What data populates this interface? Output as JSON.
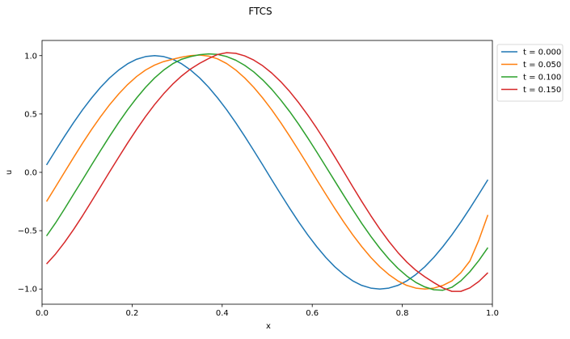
{
  "chart_data": {
    "type": "line",
    "title": "FTCS",
    "xlabel": "x",
    "ylabel": "u",
    "xlim": [
      0.0,
      1.0
    ],
    "ylim": [
      -1.13,
      1.13
    ],
    "grid": false,
    "legend_position": "outside-top-right",
    "x_ticks": [
      "0.0",
      "0.2",
      "0.4",
      "0.6",
      "0.8",
      "1.0"
    ],
    "x_tick_values": [
      0.0,
      0.2,
      0.4,
      0.6,
      0.8,
      1.0
    ],
    "y_ticks": [
      "1.0",
      "0.5",
      "0.0",
      "−0.5",
      "−1.0"
    ],
    "y_tick_values": [
      1.0,
      0.5,
      0.0,
      -0.5,
      -1.0
    ],
    "x": [
      0.01,
      0.03,
      0.05,
      0.07,
      0.09,
      0.11,
      0.13,
      0.15,
      0.17,
      0.19,
      0.21,
      0.23,
      0.25,
      0.27,
      0.29,
      0.31,
      0.33,
      0.35,
      0.37,
      0.39,
      0.41,
      0.43,
      0.45,
      0.47,
      0.49,
      0.51,
      0.53,
      0.55,
      0.57,
      0.59,
      0.61,
      0.63,
      0.65,
      0.67,
      0.69,
      0.71,
      0.73,
      0.75,
      0.77,
      0.79,
      0.81,
      0.83,
      0.85,
      0.87,
      0.89,
      0.91,
      0.93,
      0.95,
      0.97,
      0.99
    ],
    "series": [
      {
        "name": "t = 0.000",
        "color": "#1f77b4",
        "values": [
          0.063,
          0.187,
          0.309,
          0.426,
          0.536,
          0.637,
          0.729,
          0.809,
          0.876,
          0.93,
          0.969,
          0.992,
          1.0,
          0.992,
          0.969,
          0.93,
          0.876,
          0.809,
          0.729,
          0.637,
          0.536,
          0.426,
          0.309,
          0.187,
          0.063,
          -0.063,
          -0.187,
          -0.309,
          -0.426,
          -0.536,
          -0.637,
          -0.729,
          -0.809,
          -0.876,
          -0.93,
          -0.969,
          -0.992,
          -1.0,
          -0.992,
          -0.969,
          -0.93,
          -0.876,
          -0.809,
          -0.729,
          -0.637,
          -0.536,
          -0.426,
          -0.309,
          -0.187,
          -0.063
        ]
      },
      {
        "name": "t = 0.050",
        "color": "#ff7f0e",
        "values": [
          -0.25,
          -0.125,
          0.002,
          0.127,
          0.25,
          0.367,
          0.477,
          0.579,
          0.671,
          0.752,
          0.821,
          0.877,
          0.919,
          0.949,
          0.969,
          0.987,
          1.0,
          1.005,
          0.996,
          0.972,
          0.932,
          0.877,
          0.809,
          0.729,
          0.637,
          0.536,
          0.426,
          0.309,
          0.187,
          0.063,
          -0.063,
          -0.187,
          -0.309,
          -0.426,
          -0.536,
          -0.637,
          -0.729,
          -0.809,
          -0.876,
          -0.93,
          -0.969,
          -0.992,
          -1.0,
          -0.992,
          -0.969,
          -0.93,
          -0.86,
          -0.76,
          -0.58,
          -0.365
        ]
      },
      {
        "name": "t = 0.100",
        "color": "#2ca02c",
        "values": [
          -0.545,
          -0.434,
          -0.313,
          -0.187,
          -0.063,
          0.063,
          0.187,
          0.309,
          0.426,
          0.536,
          0.637,
          0.729,
          0.809,
          0.876,
          0.93,
          0.969,
          0.992,
          1.008,
          1.015,
          1.01,
          0.992,
          0.961,
          0.917,
          0.861,
          0.792,
          0.712,
          0.62,
          0.52,
          0.411,
          0.295,
          0.174,
          0.05,
          -0.074,
          -0.198,
          -0.32,
          -0.438,
          -0.548,
          -0.65,
          -0.742,
          -0.822,
          -0.889,
          -0.943,
          -0.982,
          -1.006,
          -1.01,
          -0.985,
          -0.93,
          -0.852,
          -0.755,
          -0.645
        ]
      },
      {
        "name": "t = 0.150",
        "color": "#d62728",
        "values": [
          -0.785,
          -0.7,
          -0.6,
          -0.49,
          -0.372,
          -0.248,
          -0.122,
          0.004,
          0.128,
          0.251,
          0.368,
          0.479,
          0.581,
          0.673,
          0.755,
          0.826,
          0.886,
          0.934,
          0.975,
          1.01,
          1.025,
          1.02,
          0.998,
          0.962,
          0.913,
          0.851,
          0.777,
          0.692,
          0.596,
          0.491,
          0.378,
          0.258,
          0.133,
          0.005,
          -0.124,
          -0.25,
          -0.371,
          -0.486,
          -0.591,
          -0.686,
          -0.769,
          -0.839,
          -0.895,
          -0.945,
          -0.99,
          -1.02,
          -1.02,
          -0.99,
          -0.935,
          -0.86
        ]
      }
    ]
  }
}
